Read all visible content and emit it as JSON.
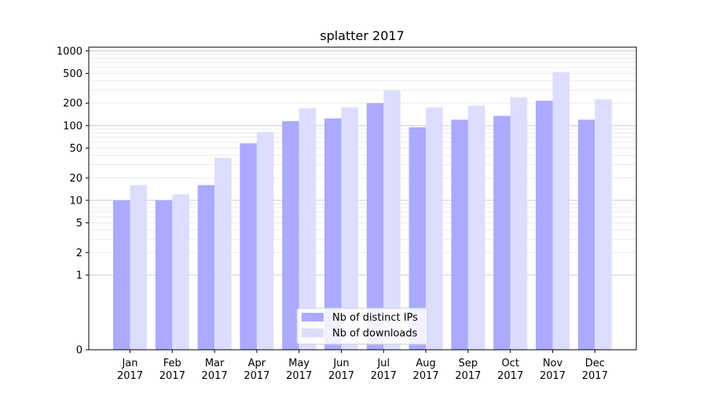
{
  "chart_data": {
    "type": "bar",
    "title": "splatter 2017",
    "xlabel": "",
    "ylabel": "",
    "yscale": "symlog",
    "ylim": [
      0,
      1000
    ],
    "yticks": [
      0,
      1,
      2,
      5,
      10,
      20,
      50,
      100,
      200,
      500,
      1000
    ],
    "grid": true,
    "categories": [
      {
        "month": "Jan",
        "year": "2017"
      },
      {
        "month": "Feb",
        "year": "2017"
      },
      {
        "month": "Mar",
        "year": "2017"
      },
      {
        "month": "Apr",
        "year": "2017"
      },
      {
        "month": "May",
        "year": "2017"
      },
      {
        "month": "Jun",
        "year": "2017"
      },
      {
        "month": "Jul",
        "year": "2017"
      },
      {
        "month": "Aug",
        "year": "2017"
      },
      {
        "month": "Sep",
        "year": "2017"
      },
      {
        "month": "Oct",
        "year": "2017"
      },
      {
        "month": "Nov",
        "year": "2017"
      },
      {
        "month": "Dec",
        "year": "2017"
      }
    ],
    "series": [
      {
        "name": "Nb of distinct IPs",
        "color": "#aaaaff",
        "values": [
          10,
          10,
          16,
          58,
          115,
          125,
          200,
          95,
          120,
          135,
          215,
          120
        ]
      },
      {
        "name": "Nb of downloads",
        "color": "#ddddff",
        "values": [
          16,
          12,
          37,
          82,
          170,
          175,
          295,
          175,
          185,
          240,
          520,
          225
        ]
      }
    ],
    "legend": "bottom-center"
  }
}
